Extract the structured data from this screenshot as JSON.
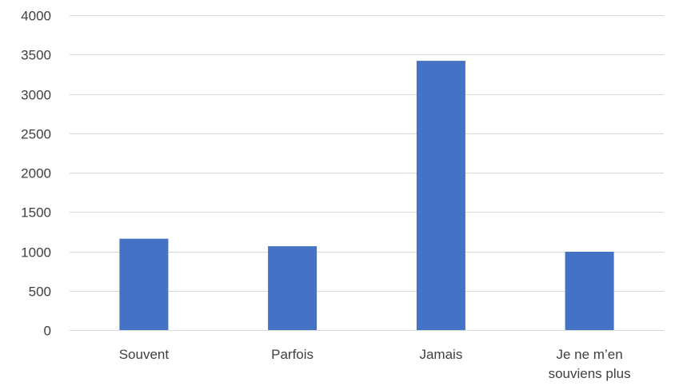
{
  "chart_data": {
    "type": "bar",
    "categories": [
      "Souvent",
      "Parfois",
      "Jamais",
      "Je ne m’en souviens plus"
    ],
    "category_label_lines": [
      [
        "Souvent"
      ],
      [
        "Parfois"
      ],
      [
        "Jamais"
      ],
      [
        "Je ne m’en",
        "souviens plus"
      ]
    ],
    "values": [
      1160,
      1065,
      3420,
      995
    ],
    "ylim": [
      0,
      4000
    ],
    "yticks": [
      0,
      500,
      1000,
      1500,
      2000,
      2500,
      3000,
      3500,
      4000
    ],
    "grid": true,
    "legend": "none",
    "bar_color": "#4472C4",
    "title": "",
    "xlabel": "",
    "ylabel": ""
  }
}
